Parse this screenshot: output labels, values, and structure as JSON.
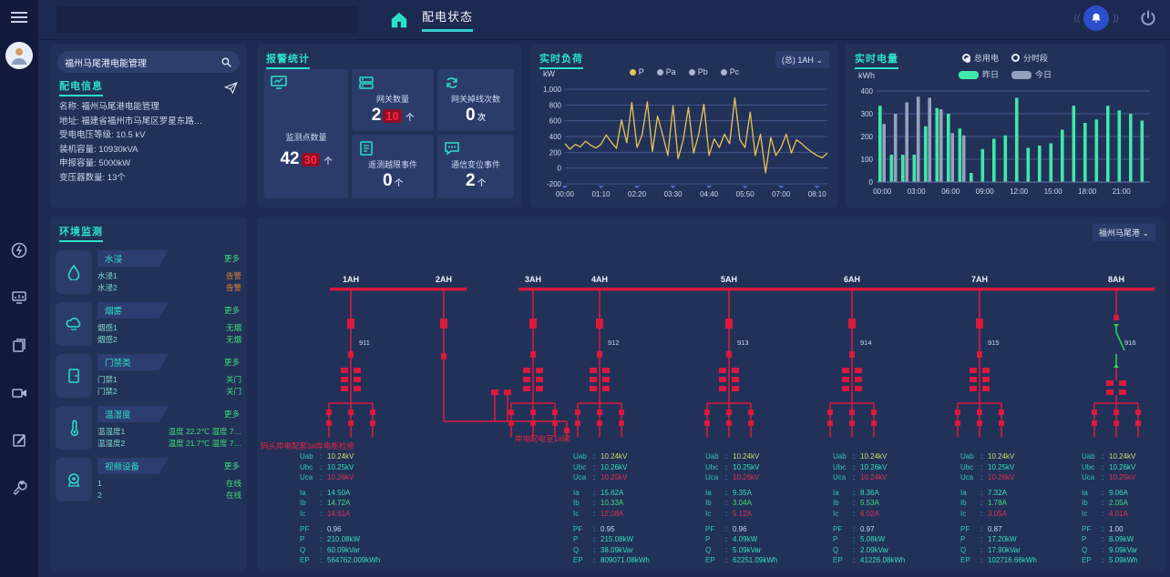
{
  "topbar": {
    "tab": "配电状态",
    "icons": [
      "hamburger-menu",
      "home-icon",
      "bell-icon",
      "power-icon"
    ]
  },
  "sidebar": {
    "icons": [
      "power-circle-icon",
      "monitor-chart-icon",
      "documents-icon",
      "camera-icon",
      "edit-icon",
      "tools-icon"
    ]
  },
  "station_panel": {
    "search_value": "福州马尾港电能管理",
    "section_title": "配电信息",
    "fields": [
      {
        "label": "名称",
        "value": "福州马尾港电能管理"
      },
      {
        "label": "地址",
        "value": "福建省福州市马尾区罗星东路…"
      },
      {
        "label": "受电电压等级",
        "value": "10.5 kV"
      },
      {
        "label": "装机容量",
        "value": "10930kVA"
      },
      {
        "label": "申报容量",
        "value": "5000kW"
      },
      {
        "label": "变压器数量",
        "value": "13个"
      }
    ]
  },
  "alarm_panel": {
    "title": "报警统计",
    "cards": [
      {
        "icon": "monitor-points-icon",
        "label": "监测点数量",
        "value": "42",
        "alert": "30",
        "unit": "个"
      },
      {
        "icon": "gateway-icon",
        "label": "网关数量",
        "value": "2",
        "alert": "10",
        "unit": "个"
      },
      {
        "icon": "offline-icon",
        "label": "网关掉线次数",
        "value": "0",
        "alert": "",
        "unit": "次"
      },
      {
        "icon": "telemetry-icon",
        "label": "遥测越限事件",
        "value": "0",
        "alert": "",
        "unit": "个"
      },
      {
        "icon": "comm-icon",
        "label": "通信变位事件",
        "value": "2",
        "alert": "",
        "unit": "个"
      }
    ]
  },
  "env_panel": {
    "title": "环境监测",
    "more_label": "更多",
    "sections": [
      {
        "icon": "water-icon",
        "name": "水浸",
        "items": [
          {
            "label": "水浸1",
            "status": "告警",
            "state": "warn"
          },
          {
            "label": "水浸2",
            "status": "告警",
            "state": "warn"
          }
        ]
      },
      {
        "icon": "smoke-icon",
        "name": "烟雾",
        "items": [
          {
            "label": "烟感1",
            "status": "无烟",
            "state": "ok"
          },
          {
            "label": "烟感2",
            "status": "无烟",
            "state": "ok"
          }
        ]
      },
      {
        "icon": "door-icon",
        "name": "门禁类",
        "items": [
          {
            "label": "门禁1",
            "status": "关门",
            "state": "ok"
          },
          {
            "label": "门禁2",
            "status": "关门",
            "state": "ok"
          }
        ]
      },
      {
        "icon": "thermo-icon",
        "name": "温湿度",
        "items": [
          {
            "label": "温湿度1",
            "status": "温度 22.2℃ 湿度 7…",
            "state": "ok"
          },
          {
            "label": "温湿度2",
            "status": "温度 21.7℃ 湿度 7…",
            "state": "ok"
          }
        ]
      },
      {
        "icon": "video-icon",
        "name": "视频设备",
        "items": [
          {
            "label": "1",
            "status": "在线",
            "state": "ok"
          },
          {
            "label": "2",
            "status": "在线",
            "state": "ok"
          }
        ]
      }
    ]
  },
  "diagram": {
    "selector": "福州马尾港",
    "buses": [
      {
        "labels": [
          "1AH",
          "2AH"
        ]
      },
      {
        "labels": [
          "3AH",
          "4AH",
          "5AH",
          "6AH",
          "7AH",
          "8AH"
        ]
      }
    ],
    "breaker_labels": [
      "911",
      "",
      "",
      "912",
      "913",
      "914",
      "915",
      "916"
    ],
    "annotations": [
      "码头岸电配套3#岸电柜检修",
      "岸电配电室1#间"
    ],
    "readout_labels": [
      "Uab",
      "Ubc",
      "Uca",
      "Ia",
      "Ib",
      "Ic",
      "PF",
      "P",
      "Q",
      "EP"
    ],
    "readouts": [
      {
        "values": [
          "10.24kV",
          "10.25kV",
          "10.26kV",
          "14.50A",
          "14.72A",
          "14.61A",
          "0.96",
          "210.08kW",
          "60.09kVar",
          "564762.009kWh"
        ]
      },
      {
        "values": [
          "10.24kV",
          "10.26kV",
          "10.25kV",
          "15.62A",
          "10.33A",
          "12.08A",
          "0.95",
          "215.08kW",
          "38.09kVar",
          "809071.08kWh"
        ]
      },
      {
        "values": [
          "10.24kV",
          "10.25kV",
          "10.26kV",
          "9.35A",
          "3.04A",
          "5.12A",
          "0.96",
          "4.09kW",
          "5.09kVar",
          "62251.09kWh"
        ]
      },
      {
        "values": [
          "10.24kV",
          "10.26kV",
          "10.24kV",
          "8.36A",
          "5.53A",
          "6.02A",
          "0.97",
          "5.08kW",
          "2.09kVar",
          "41226.08kWh"
        ]
      },
      {
        "values": [
          "10.24kV",
          "10.25kV",
          "10.26kV",
          "7.32A",
          "1.78A",
          "3.05A",
          "0.87",
          "17.20kW",
          "17.90kVar",
          "102716.66kWh"
        ]
      },
      {
        "values": [
          "10.24kV",
          "10.26kV",
          "10.25kV",
          "9.06A",
          "2.05A",
          "4.01A",
          "1.00",
          "8.09kW",
          "9.09kVar",
          "5.09kWh"
        ]
      }
    ]
  },
  "chart_data": [
    {
      "type": "line",
      "title": "实时负荷",
      "selector": "(总) 1AH",
      "ylabel": "kW",
      "ylim": [
        -200,
        1000
      ],
      "yticks": [
        1000,
        800,
        600,
        400,
        200,
        0,
        -200
      ],
      "xtick_labels": [
        "00:00",
        "01:10",
        "02:20",
        "03:30",
        "04:40",
        "05:50",
        "07:00",
        "08:10"
      ],
      "legend": [
        {
          "name": "P",
          "color": "#e8c455"
        },
        {
          "name": "Pa",
          "color": "#aab4cc"
        },
        {
          "name": "Pb",
          "color": "#aab4cc"
        },
        {
          "name": "Pc",
          "color": "#aab4cc"
        }
      ],
      "series": [
        {
          "name": "P",
          "color": "#e8c455",
          "values": [
            310,
            240,
            300,
            270,
            340,
            290,
            255,
            300,
            420,
            330,
            250,
            610,
            320,
            830,
            260,
            420,
            840,
            210,
            660,
            420,
            160,
            790,
            120,
            360,
            770,
            190,
            430,
            810,
            160,
            370,
            260,
            430,
            310,
            890,
            360,
            260,
            710,
            160,
            430,
            -60,
            390,
            160,
            260,
            430,
            190,
            360,
            310,
            250,
            200,
            160,
            130,
            190
          ]
        }
      ]
    },
    {
      "type": "bar",
      "title": "实时电量",
      "ylabel": "kWh",
      "ylim": [
        0,
        400
      ],
      "yticks": [
        400,
        300,
        200,
        100,
        0
      ],
      "xtick_labels": [
        "00:00",
        "03:00",
        "06:00",
        "09:00",
        "12:00",
        "15:00",
        "18:00",
        "21:00"
      ],
      "radio_options": [
        {
          "label": "总用电",
          "selected": true
        },
        {
          "label": "分时段",
          "selected": false
        }
      ],
      "legend": [
        {
          "name": "昨日",
          "color": "#3fe8a9"
        },
        {
          "name": "今日",
          "color": "#96a2bd"
        }
      ],
      "categories": [
        "00",
        "01",
        "02",
        "03",
        "04",
        "05",
        "06",
        "07",
        "08",
        "09",
        "10",
        "11",
        "12",
        "13",
        "14",
        "15",
        "16",
        "17",
        "18",
        "19",
        "20",
        "21",
        "22",
        "23"
      ],
      "series": [
        {
          "name": "昨日",
          "color": "#3fe8a9",
          "values": [
            335,
            120,
            120,
            120,
            245,
            325,
            300,
            235,
            40,
            145,
            190,
            205,
            370,
            150,
            160,
            170,
            230,
            335,
            260,
            275,
            335,
            315,
            300,
            270
          ]
        },
        {
          "name": "今日",
          "color": "#96a2bd",
          "values": [
            255,
            300,
            350,
            375,
            370,
            320,
            215,
            205
          ]
        }
      ]
    }
  ]
}
